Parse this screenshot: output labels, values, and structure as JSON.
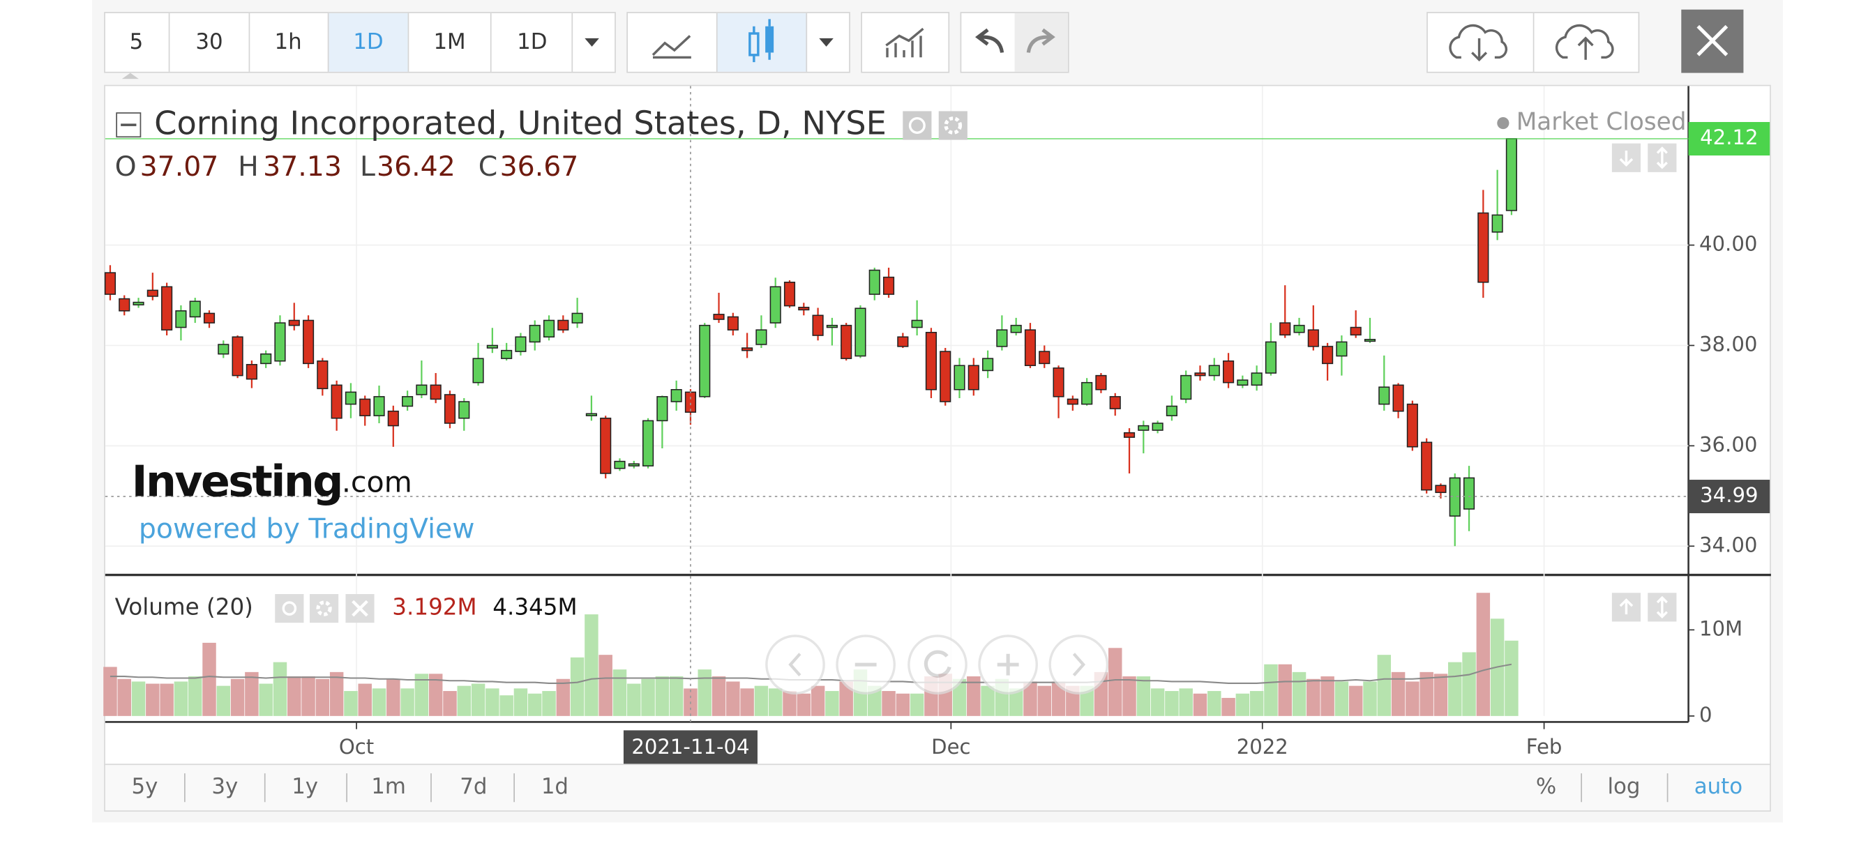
{
  "toolbar": {
    "intervals": [
      "5",
      "30",
      "1h",
      "1D",
      "1M",
      "1D"
    ]
  },
  "legend": {
    "symbol": "Corning Incorporated, United States, D, NYSE",
    "status": "Market Closed",
    "ohlc_keys": [
      "O",
      "H",
      "L",
      "C"
    ]
  },
  "watermark": {
    "brand": "Investing",
    "domain": ".com",
    "powered": "powered by TradingView"
  },
  "chart_data": [
    {
      "type": "candlestick",
      "x": [
        0,
        1,
        2,
        3,
        4,
        5,
        6,
        7,
        8,
        9,
        10,
        11,
        12,
        13,
        14,
        15,
        16,
        17,
        18,
        19,
        20,
        21,
        22,
        23,
        24,
        25,
        26,
        27,
        28,
        29,
        30,
        31,
        32,
        33,
        34,
        35,
        36,
        37,
        38,
        39,
        40,
        41,
        42,
        43,
        44,
        45,
        46,
        47,
        48,
        49,
        50,
        51,
        52,
        53,
        54,
        55,
        56,
        57,
        58,
        59,
        60,
        61,
        62,
        63,
        64,
        65,
        66,
        67,
        68,
        69,
        70,
        71,
        72,
        73,
        74,
        75,
        76,
        77,
        78,
        79,
        80,
        81,
        82,
        83,
        84,
        85,
        86,
        87,
        88,
        89,
        90,
        91,
        92,
        93,
        94,
        95,
        96,
        97,
        98,
        99
      ],
      "series": [
        {
          "open": [
            39.45,
            38.93,
            38.81,
            39.1,
            39.17,
            38.36,
            38.57,
            38.64,
            37.83,
            38.17,
            37.62,
            37.64,
            37.69,
            38.5,
            38.5,
            37.69,
            37.21,
            36.83,
            36.93,
            36.6,
            36.69,
            36.79,
            37.02,
            37.21,
            37.02,
            36.55,
            37.26,
            37.95,
            37.74,
            37.88,
            38.07,
            38.17,
            38.5,
            38.45,
            36.6,
            36.55,
            35.55,
            35.6,
            35.6,
            36.5,
            36.88,
            37.07,
            36.98,
            38.62,
            38.57,
            37.95,
            38.02,
            38.45,
            39.26,
            38.76,
            38.6,
            38.36,
            38.4,
            37.79,
            39.02,
            39.36,
            38.17,
            38.36,
            38.26,
            37.88,
            37.12,
            37.6,
            37.5,
            37.98,
            38.26,
            38.31,
            37.88,
            37.55,
            36.93,
            36.83,
            37.4,
            36.98,
            36.26,
            36.31,
            36.31,
            36.6,
            36.93,
            37.45,
            37.4,
            37.69,
            37.21,
            37.21,
            37.45,
            38.45,
            38.26,
            38.31,
            37.98,
            37.79,
            38.36,
            38.12,
            36.83,
            37.21,
            36.83,
            36.07,
            35.21,
            34.6,
            34.74,
            40.64,
            40.26,
            40.69
          ],
          "high": [
            39.6,
            39.0,
            38.95,
            39.45,
            39.25,
            38.8,
            38.95,
            38.7,
            38.1,
            38.2,
            37.7,
            37.9,
            38.6,
            38.85,
            38.6,
            37.75,
            37.3,
            37.25,
            37.0,
            37.2,
            36.8,
            37.1,
            37.7,
            37.45,
            37.1,
            36.95,
            38.05,
            38.35,
            38.05,
            38.25,
            38.5,
            38.6,
            38.6,
            38.95,
            37.0,
            36.6,
            35.75,
            35.7,
            36.55,
            37.0,
            37.3,
            37.13,
            38.45,
            39.05,
            38.65,
            38.25,
            38.6,
            39.35,
            39.3,
            38.85,
            38.75,
            38.55,
            38.45,
            38.8,
            39.55,
            39.55,
            38.25,
            38.9,
            38.35,
            37.95,
            37.75,
            37.75,
            37.9,
            38.6,
            38.55,
            38.45,
            38.0,
            37.6,
            37.0,
            37.35,
            37.45,
            37.05,
            36.35,
            36.5,
            36.5,
            37.0,
            37.5,
            37.6,
            37.75,
            37.85,
            37.4,
            37.6,
            38.45,
            39.2,
            38.55,
            38.8,
            38.05,
            38.2,
            38.7,
            38.55,
            37.8,
            37.25,
            36.9,
            36.15,
            35.25,
            35.45,
            35.6,
            41.1,
            41.5,
            42.12
          ],
          "low": [
            38.9,
            38.6,
            38.75,
            38.9,
            38.2,
            38.1,
            38.45,
            38.35,
            37.75,
            37.35,
            37.15,
            37.55,
            37.6,
            38.3,
            37.55,
            37.0,
            36.3,
            36.55,
            36.4,
            36.45,
            35.98,
            36.7,
            36.95,
            36.85,
            36.35,
            36.3,
            37.2,
            37.85,
            37.7,
            37.8,
            37.9,
            38.1,
            38.25,
            38.35,
            36.5,
            35.35,
            35.5,
            35.55,
            35.55,
            35.95,
            36.7,
            36.42,
            36.95,
            38.45,
            38.2,
            37.75,
            37.95,
            38.35,
            38.75,
            38.6,
            38.1,
            38.0,
            37.7,
            37.75,
            38.9,
            38.95,
            37.95,
            38.2,
            36.95,
            36.8,
            36.95,
            37.0,
            37.35,
            37.9,
            38.2,
            37.55,
            37.55,
            36.55,
            36.7,
            36.8,
            37.05,
            36.6,
            35.45,
            35.85,
            36.25,
            36.5,
            36.85,
            37.3,
            37.3,
            37.15,
            37.15,
            37.1,
            37.4,
            38.15,
            38.2,
            37.9,
            37.3,
            37.4,
            38.15,
            38.05,
            36.7,
            36.55,
            35.9,
            35.05,
            34.95,
            34.0,
            34.3,
            38.95,
            40.1,
            40.6
          ],
          "close": [
            39.02,
            38.69,
            38.86,
            38.98,
            38.31,
            38.69,
            38.88,
            38.45,
            38.02,
            37.4,
            37.33,
            37.83,
            38.45,
            38.4,
            37.64,
            37.14,
            36.55,
            37.07,
            36.6,
            36.98,
            36.4,
            36.98,
            37.21,
            36.93,
            36.45,
            36.88,
            37.74,
            38.0,
            37.9,
            38.17,
            38.4,
            38.5,
            38.31,
            38.64,
            36.64,
            35.45,
            35.69,
            35.64,
            36.5,
            36.98,
            37.12,
            36.67,
            38.4,
            38.52,
            38.31,
            37.9,
            38.31,
            39.17,
            38.79,
            38.71,
            38.2,
            38.4,
            37.74,
            38.74,
            39.5,
            39.02,
            37.98,
            38.5,
            37.12,
            36.88,
            37.6,
            37.12,
            37.74,
            38.31,
            38.4,
            37.6,
            37.64,
            36.98,
            36.83,
            37.26,
            37.12,
            36.74,
            36.17,
            36.4,
            36.45,
            36.79,
            37.4,
            37.4,
            37.6,
            37.26,
            37.31,
            37.45,
            38.07,
            38.21,
            38.4,
            37.98,
            37.64,
            38.07,
            38.21,
            38.12,
            37.17,
            36.69,
            35.98,
            35.12,
            35.07,
            35.36,
            35.36,
            39.26,
            40.6,
            42.12
          ],
          "up_color": "#5fd05b",
          "down_color": "#d8311e"
        }
      ],
      "xlim": [
        -0.35,
        111.5
      ],
      "xticks": [
        {
          "value": 17.4,
          "label": "Oct"
        },
        {
          "value": 59.4,
          "label": "Dec"
        },
        {
          "value": 81.4,
          "label": "2022"
        },
        {
          "value": 101.3,
          "label": "Feb"
        }
      ],
      "ylim": [
        33.45,
        43.17
      ],
      "yticks": [
        {
          "value": 34,
          "label": "34.00"
        },
        {
          "value": 36,
          "label": "36.00"
        },
        {
          "value": 38,
          "label": "38.00"
        },
        {
          "value": 40,
          "label": "40.00"
        }
      ],
      "grid": true,
      "last_price_color": "#4cd44c",
      "crosshair": {
        "x": 41,
        "y": 34.99,
        "x_label": "2021-11-04"
      }
    },
    {
      "type": "bar",
      "title": "Volume (20)",
      "values": [
        5.7,
        4.3,
        4.0,
        3.75,
        3.75,
        4.0,
        4.6,
        8.5,
        3.5,
        4.3,
        5.1,
        3.75,
        6.25,
        4.6,
        4.6,
        4.3,
        5.1,
        2.9,
        3.75,
        3.2,
        4.3,
        3.2,
        4.9,
        4.9,
        2.9,
        3.5,
        3.75,
        3.2,
        2.4,
        3.2,
        2.6,
        2.9,
        4.3,
        6.8,
        11.8,
        7.1,
        5.4,
        3.75,
        4.3,
        4.6,
        4.6,
        3.192,
        5.4,
        4.6,
        4.0,
        3.2,
        3.5,
        3.2,
        2.9,
        2.6,
        3.5,
        2.9,
        4.0,
        5.4,
        3.5,
        2.9,
        2.6,
        2.6,
        4.6,
        4.9,
        4.3,
        4.6,
        3.5,
        4.3,
        3.2,
        4.0,
        3.5,
        4.0,
        3.5,
        3.5,
        5.1,
        7.9,
        4.6,
        4.6,
        3.2,
        2.9,
        3.2,
        2.6,
        2.9,
        2.1,
        2.6,
        2.9,
        6.0,
        6.0,
        5.1,
        4.3,
        4.6,
        4.0,
        3.5,
        4.0,
        7.1,
        5.1,
        4.0,
        5.1,
        4.9,
        6.25,
        7.4,
        14.3,
        11.3,
        8.75
      ],
      "ma_values": [
        4.6,
        4.6,
        4.5,
        4.5,
        4.4,
        4.4,
        4.4,
        4.6,
        4.5,
        4.5,
        4.5,
        4.4,
        4.5,
        4.5,
        4.5,
        4.5,
        4.5,
        4.4,
        4.4,
        4.3,
        4.3,
        4.2,
        4.2,
        4.2,
        4.1,
        4.1,
        4.0,
        4.0,
        3.9,
        3.9,
        3.9,
        3.8,
        3.8,
        3.9,
        4.3,
        4.4,
        4.4,
        4.4,
        4.4,
        4.4,
        4.4,
        4.345,
        4.4,
        4.4,
        4.4,
        4.4,
        4.3,
        4.3,
        4.2,
        4.2,
        4.2,
        4.2,
        4.1,
        4.1,
        4.0,
        4.0,
        4.0,
        3.9,
        3.9,
        3.9,
        3.9,
        3.9,
        3.9,
        3.9,
        3.9,
        3.9,
        3.9,
        3.9,
        3.9,
        3.9,
        4.0,
        4.2,
        4.2,
        4.1,
        4.1,
        4.0,
        4.0,
        4.0,
        3.9,
        3.8,
        3.8,
        3.8,
        3.9,
        4.0,
        4.0,
        4.1,
        4.1,
        4.1,
        4.2,
        4.1,
        4.3,
        4.3,
        4.3,
        4.4,
        4.5,
        4.6,
        4.8,
        5.3,
        5.7,
        6.0
      ],
      "legend_values": [
        "3.192M",
        "4.345M"
      ],
      "up_color": "#b6e3ae",
      "down_color": "#dca3a3",
      "ma_color": "#8a8a8a",
      "ylim": [
        0,
        16.1
      ],
      "yticks": [
        0,
        {
          "value": 10,
          "label": "10M"
        }
      ]
    }
  ],
  "bottom_bar": {
    "ranges": [
      "5y",
      "3y",
      "1y",
      "1m",
      "7d",
      "1d"
    ],
    "scales": [
      "%",
      "log",
      "auto"
    ]
  }
}
